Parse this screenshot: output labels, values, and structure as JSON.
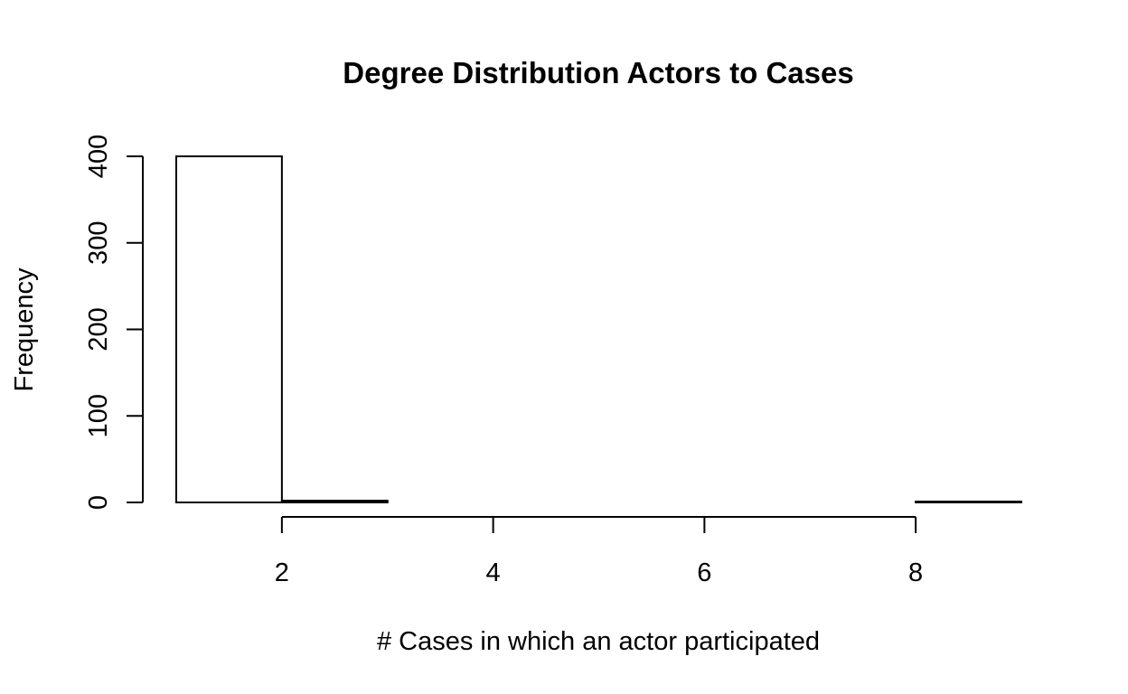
{
  "chart_data": {
    "type": "bar",
    "title": "Degree Distribution Actors to Cases",
    "xlabel": "# Cases in which an actor participated",
    "ylabel": "Frequency",
    "bins": [
      [
        1,
        2
      ],
      [
        2,
        3
      ],
      [
        3,
        4
      ],
      [
        4,
        5
      ],
      [
        5,
        6
      ],
      [
        6,
        7
      ],
      [
        7,
        8
      ],
      [
        8,
        9
      ]
    ],
    "values": [
      400,
      2,
      0,
      0,
      0,
      0,
      0,
      1
    ],
    "xlim": [
      1,
      9
    ],
    "ylim": [
      0,
      400
    ],
    "xticks": [
      2,
      4,
      6,
      8
    ],
    "yticks": [
      0,
      100,
      200,
      300,
      400
    ],
    "grid": false
  }
}
